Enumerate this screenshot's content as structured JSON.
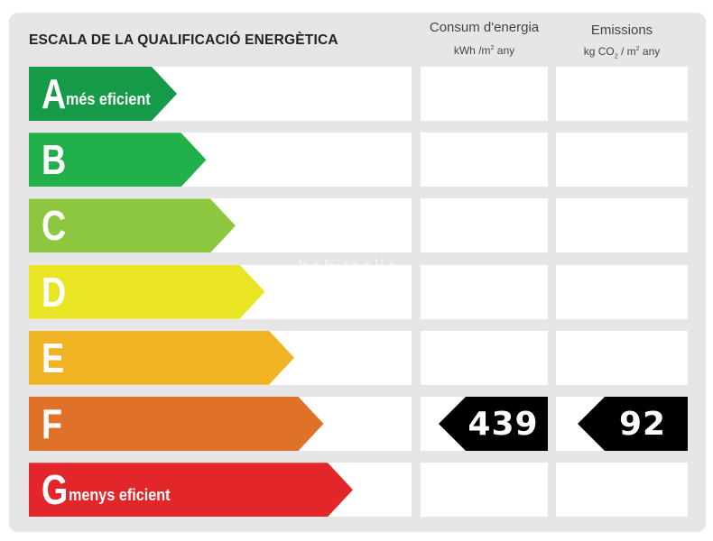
{
  "title": "ESCALA DE LA QUALIFICACIÓ ENERGÈTICA",
  "watermark": "habitaclia",
  "columns": {
    "consum": {
      "label": "Consum d'energia",
      "unit_prefix": "kWh /m",
      "unit_sup": "2",
      "unit_suffix": " any"
    },
    "emissions": {
      "label": "Emissions",
      "unit_prefix": "kg CO",
      "unit_sub": "2",
      "unit_mid": " / m",
      "unit_sup": "2",
      "unit_suffix": " any"
    }
  },
  "chart_data": {
    "type": "table",
    "title": "ESCALA DE LA QUALIFICACIÓ ENERGÈTICA",
    "classes": [
      {
        "letter": "A",
        "label": "més eficient",
        "color": "#159b48",
        "level": 1
      },
      {
        "letter": "B",
        "label": "",
        "color": "#22b04b",
        "level": 2
      },
      {
        "letter": "C",
        "label": "",
        "color": "#8dc63f",
        "level": 3
      },
      {
        "letter": "D",
        "label": "",
        "color": "#e9e524",
        "level": 4
      },
      {
        "letter": "E",
        "label": "",
        "color": "#f0b323",
        "level": 5
      },
      {
        "letter": "F",
        "label": "",
        "color": "#e07128",
        "level": 6
      },
      {
        "letter": "G",
        "label": "menys eficient",
        "color": "#e3262a",
        "level": 7
      }
    ],
    "rating": {
      "consum": {
        "class": "F",
        "value": "439"
      },
      "emissions": {
        "class": "F",
        "value": "92"
      }
    }
  }
}
